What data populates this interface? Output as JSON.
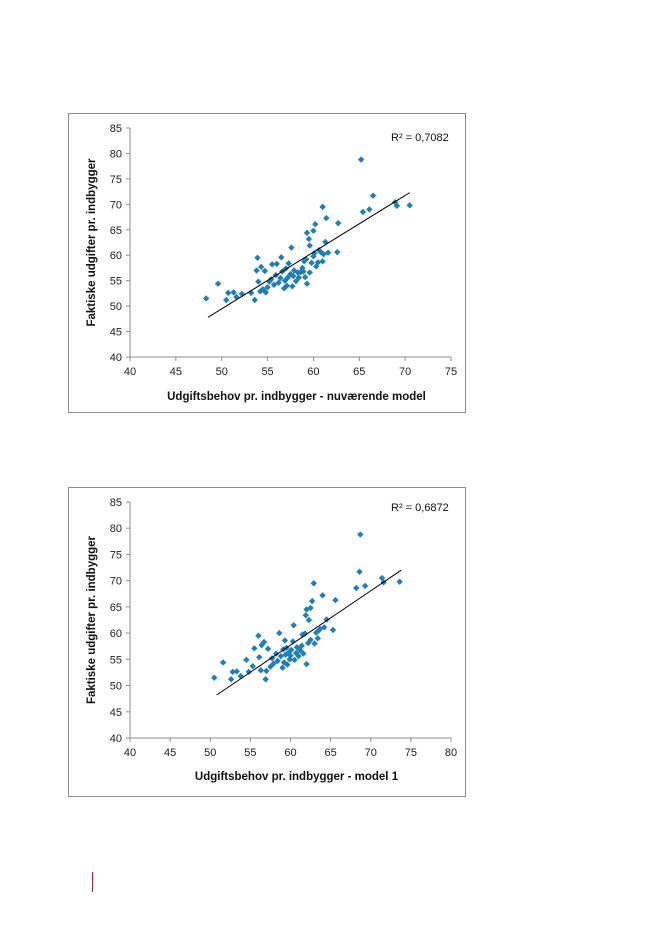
{
  "chart_data": [
    {
      "type": "scatter",
      "xlabel": "Udgiftsbehov pr. indbygger - nuværende model",
      "ylabel": "Faktiske udgifter pr. indbygger",
      "xlim": [
        40,
        75
      ],
      "ylim": [
        40,
        85
      ],
      "xticks": [
        40,
        45,
        50,
        55,
        60,
        65,
        70,
        75
      ],
      "yticks": [
        40,
        45,
        50,
        55,
        60,
        65,
        70,
        75,
        80,
        85
      ],
      "annotation": "R² = 0,7082",
      "trendline": {
        "x": [
          48.5,
          70.5
        ],
        "y": [
          47.8,
          72.3
        ]
      },
      "marker_color": "#1f7fb6",
      "grid": false,
      "legend": "none",
      "points": [
        [
          48.3,
          51.5
        ],
        [
          49.6,
          54.4
        ],
        [
          50.5,
          51.2
        ],
        [
          50.7,
          52.6
        ],
        [
          51.3,
          52.7
        ],
        [
          51.6,
          51.8
        ],
        [
          52.2,
          52.4
        ],
        [
          53.2,
          52.6
        ],
        [
          53.6,
          51.2
        ],
        [
          53.8,
          57.0
        ],
        [
          53.9,
          59.5
        ],
        [
          54.0,
          54.8
        ],
        [
          54.2,
          52.9
        ],
        [
          54.3,
          57.7
        ],
        [
          54.5,
          53.3
        ],
        [
          54.7,
          56.9
        ],
        [
          54.8,
          52.7
        ],
        [
          55.0,
          53.7
        ],
        [
          55.2,
          54.8
        ],
        [
          55.4,
          55.3
        ],
        [
          55.5,
          58.2
        ],
        [
          55.7,
          54.2
        ],
        [
          55.9,
          56.1
        ],
        [
          56.0,
          58.3
        ],
        [
          56.2,
          54.6
        ],
        [
          56.4,
          55.5
        ],
        [
          56.5,
          59.6
        ],
        [
          56.6,
          56.8
        ],
        [
          56.8,
          53.5
        ],
        [
          56.9,
          55.0
        ],
        [
          57.0,
          57.4
        ],
        [
          57.1,
          54.0
        ],
        [
          57.2,
          55.6
        ],
        [
          57.3,
          58.4
        ],
        [
          57.5,
          56.3
        ],
        [
          57.6,
          61.5
        ],
        [
          57.7,
          53.9
        ],
        [
          57.8,
          55.9
        ],
        [
          57.9,
          57.0
        ],
        [
          58.1,
          54.9
        ],
        [
          58.3,
          56.6
        ],
        [
          58.4,
          55.6
        ],
        [
          58.6,
          56.7
        ],
        [
          58.8,
          57.5
        ],
        [
          58.9,
          56.8
        ],
        [
          59.0,
          58.8
        ],
        [
          59.1,
          55.7
        ],
        [
          59.2,
          59.2
        ],
        [
          59.3,
          64.4
        ],
        [
          59.3,
          54.4
        ],
        [
          59.5,
          63.2
        ],
        [
          59.6,
          56.6
        ],
        [
          59.6,
          61.9
        ],
        [
          59.8,
          58.5
        ],
        [
          60.0,
          59.8
        ],
        [
          60.0,
          64.8
        ],
        [
          60.1,
          60.4
        ],
        [
          60.2,
          66.1
        ],
        [
          60.3,
          57.8
        ],
        [
          60.5,
          58.6
        ],
        [
          60.6,
          61.0
        ],
        [
          60.8,
          60.6
        ],
        [
          61.0,
          69.5
        ],
        [
          61.0,
          58.8
        ],
        [
          61.1,
          60.2
        ],
        [
          61.3,
          62.6
        ],
        [
          61.4,
          67.3
        ],
        [
          61.6,
          60.5
        ],
        [
          62.6,
          60.6
        ],
        [
          62.7,
          66.3
        ],
        [
          65.2,
          78.8
        ],
        [
          65.4,
          68.5
        ],
        [
          66.1,
          69.0
        ],
        [
          66.5,
          71.7
        ],
        [
          68.9,
          70.4
        ],
        [
          69.1,
          69.7
        ],
        [
          70.5,
          69.8
        ]
      ]
    },
    {
      "type": "scatter",
      "xlabel": "Udgiftsbehov pr. indbygger - model 1",
      "ylabel": "Faktiske udgifter pr. indbygger",
      "xlim": [
        40,
        80
      ],
      "ylim": [
        40,
        85
      ],
      "xticks": [
        40,
        45,
        50,
        55,
        60,
        65,
        70,
        75,
        80
      ],
      "yticks": [
        40,
        45,
        50,
        55,
        60,
        65,
        70,
        75,
        80,
        85
      ],
      "annotation": "R² = 0,6872",
      "trendline": {
        "x": [
          50.8,
          73.8
        ],
        "y": [
          48.2,
          72.0
        ]
      },
      "marker_color": "#1f7fb6",
      "grid": false,
      "legend": "none",
      "points": [
        [
          50.5,
          51.5
        ],
        [
          51.6,
          54.4
        ],
        [
          52.6,
          51.2
        ],
        [
          52.8,
          52.6
        ],
        [
          53.3,
          52.7
        ],
        [
          53.8,
          51.8
        ],
        [
          54.5,
          54.9
        ],
        [
          54.8,
          52.6
        ],
        [
          55.3,
          53.7
        ],
        [
          55.5,
          57.1
        ],
        [
          56.0,
          59.5
        ],
        [
          56.1,
          55.4
        ],
        [
          56.3,
          52.9
        ],
        [
          56.4,
          57.7
        ],
        [
          56.7,
          58.3
        ],
        [
          56.9,
          51.2
        ],
        [
          57.0,
          52.8
        ],
        [
          57.2,
          57.0
        ],
        [
          57.5,
          53.6
        ],
        [
          57.7,
          55.2
        ],
        [
          57.9,
          54.2
        ],
        [
          58.2,
          56.1
        ],
        [
          58.4,
          54.7
        ],
        [
          58.6,
          60.0
        ],
        [
          58.8,
          55.6
        ],
        [
          59.0,
          53.4
        ],
        [
          59.1,
          56.9
        ],
        [
          59.2,
          54.4
        ],
        [
          59.3,
          58.6
        ],
        [
          59.4,
          55.9
        ],
        [
          59.5,
          57.2
        ],
        [
          59.6,
          54.0
        ],
        [
          59.8,
          56.3
        ],
        [
          59.9,
          55.0
        ],
        [
          60.0,
          55.7
        ],
        [
          60.1,
          56.8
        ],
        [
          60.3,
          58.4
        ],
        [
          60.4,
          61.5
        ],
        [
          60.5,
          54.9
        ],
        [
          60.7,
          56.2
        ],
        [
          60.8,
          57.3
        ],
        [
          61.0,
          55.6
        ],
        [
          61.2,
          56.7
        ],
        [
          61.4,
          57.6
        ],
        [
          61.5,
          59.7
        ],
        [
          61.6,
          56.1
        ],
        [
          61.8,
          59.9
        ],
        [
          61.9,
          63.4
        ],
        [
          62.0,
          64.5
        ],
        [
          62.0,
          54.1
        ],
        [
          62.2,
          58.1
        ],
        [
          62.3,
          62.5
        ],
        [
          62.5,
          64.8
        ],
        [
          62.5,
          58.7
        ],
        [
          62.7,
          66.1
        ],
        [
          62.9,
          69.5
        ],
        [
          63.0,
          58.0
        ],
        [
          63.2,
          60.1
        ],
        [
          63.4,
          59.0
        ],
        [
          63.5,
          60.5
        ],
        [
          63.7,
          60.8
        ],
        [
          64.0,
          67.2
        ],
        [
          64.2,
          61.1
        ],
        [
          64.5,
          62.6
        ],
        [
          65.3,
          60.6
        ],
        [
          65.6,
          66.3
        ],
        [
          68.2,
          68.6
        ],
        [
          68.6,
          71.7
        ],
        [
          68.7,
          78.8
        ],
        [
          69.3,
          69.0
        ],
        [
          71.4,
          70.5
        ],
        [
          71.6,
          69.7
        ],
        [
          73.6,
          69.8
        ]
      ]
    }
  ]
}
